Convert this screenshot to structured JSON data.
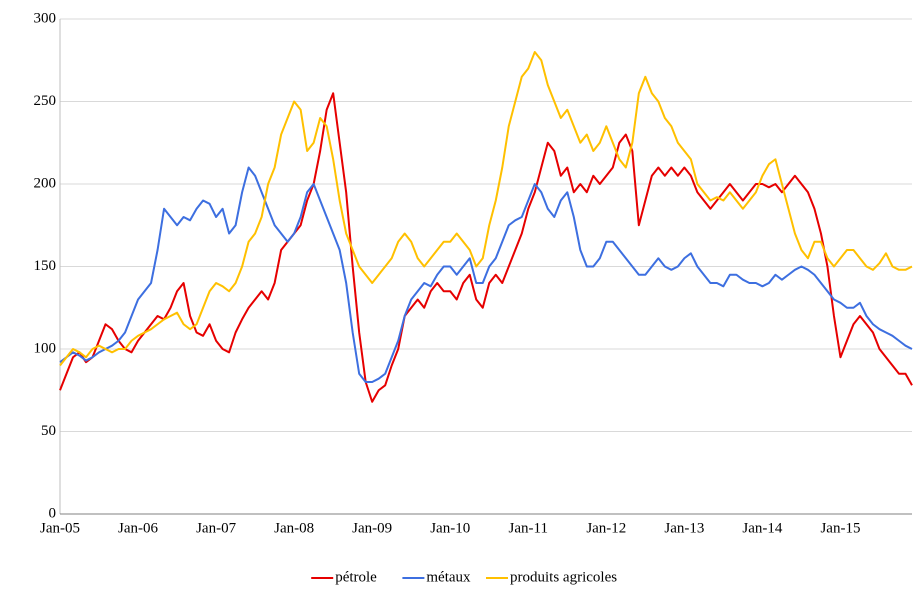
{
  "chart_data": {
    "type": "line",
    "categories": [
      "Jan-05",
      null,
      null,
      null,
      null,
      null,
      null,
      null,
      null,
      null,
      null,
      null,
      "Jan-06",
      null,
      null,
      null,
      null,
      null,
      null,
      null,
      null,
      null,
      null,
      null,
      "Jan-07",
      null,
      null,
      null,
      null,
      null,
      null,
      null,
      null,
      null,
      null,
      null,
      "Jan-08",
      null,
      null,
      null,
      null,
      null,
      null,
      null,
      null,
      null,
      null,
      null,
      "Jan-09",
      null,
      null,
      null,
      null,
      null,
      null,
      null,
      null,
      null,
      null,
      null,
      "Jan-10",
      null,
      null,
      null,
      null,
      null,
      null,
      null,
      null,
      null,
      null,
      null,
      "Jan-11",
      null,
      null,
      null,
      null,
      null,
      null,
      null,
      null,
      null,
      null,
      null,
      "Jan-12",
      null,
      null,
      null,
      null,
      null,
      null,
      null,
      null,
      null,
      null,
      null,
      "Jan-13",
      null,
      null,
      null,
      null,
      null,
      null,
      null,
      null,
      null,
      null,
      null,
      "Jan-14",
      null,
      null,
      null,
      null,
      null,
      null,
      null,
      null,
      null,
      null,
      null,
      "Jan-15",
      null,
      null,
      null,
      null,
      null,
      null,
      null,
      null,
      null,
      null,
      null
    ],
    "series": [
      {
        "name": "pétrole",
        "color": "#e60000",
        "values": [
          75,
          85,
          95,
          98,
          92,
          95,
          105,
          115,
          112,
          105,
          100,
          98,
          105,
          110,
          115,
          120,
          118,
          125,
          135,
          140,
          120,
          110,
          108,
          115,
          105,
          100,
          98,
          110,
          118,
          125,
          130,
          135,
          130,
          140,
          160,
          165,
          170,
          175,
          190,
          200,
          220,
          245,
          255,
          225,
          195,
          150,
          110,
          80,
          68,
          75,
          78,
          90,
          100,
          120,
          125,
          130,
          125,
          135,
          140,
          135,
          135,
          130,
          140,
          145,
          130,
          125,
          140,
          145,
          140,
          150,
          160,
          170,
          185,
          195,
          210,
          225,
          220,
          205,
          210,
          195,
          200,
          195,
          205,
          200,
          205,
          210,
          225,
          230,
          220,
          175,
          190,
          205,
          210,
          205,
          210,
          205,
          210,
          205,
          195,
          190,
          185,
          190,
          195,
          200,
          195,
          190,
          195,
          200,
          200,
          198,
          200,
          195,
          200,
          205,
          200,
          195,
          185,
          170,
          150,
          120,
          95,
          105,
          115,
          120,
          115,
          110,
          100,
          95,
          90,
          85,
          85,
          78
        ]
      },
      {
        "name": "métaux",
        "color": "#3d6fe0",
        "values": [
          92,
          95,
          98,
          96,
          93,
          95,
          98,
          100,
          102,
          105,
          110,
          120,
          130,
          135,
          140,
          160,
          185,
          180,
          175,
          180,
          178,
          185,
          190,
          188,
          180,
          185,
          170,
          175,
          195,
          210,
          205,
          195,
          185,
          175,
          170,
          165,
          170,
          180,
          195,
          200,
          190,
          180,
          170,
          160,
          140,
          110,
          85,
          80,
          80,
          82,
          85,
          95,
          105,
          120,
          130,
          135,
          140,
          138,
          145,
          150,
          150,
          145,
          150,
          155,
          140,
          140,
          150,
          155,
          165,
          175,
          178,
          180,
          190,
          200,
          195,
          185,
          180,
          190,
          195,
          180,
          160,
          150,
          150,
          155,
          165,
          165,
          160,
          155,
          150,
          145,
          145,
          150,
          155,
          150,
          148,
          150,
          155,
          158,
          150,
          145,
          140,
          140,
          138,
          145,
          145,
          142,
          140,
          140,
          138,
          140,
          145,
          142,
          145,
          148,
          150,
          148,
          145,
          140,
          135,
          130,
          128,
          125,
          125,
          128,
          120,
          115,
          112,
          110,
          108,
          105,
          102,
          100
        ]
      },
      {
        "name": "produits agricoles",
        "color": "#ffc000",
        "values": [
          90,
          95,
          100,
          98,
          95,
          100,
          102,
          100,
          98,
          100,
          100,
          105,
          108,
          110,
          112,
          115,
          118,
          120,
          122,
          115,
          112,
          115,
          125,
          135,
          140,
          138,
          135,
          140,
          150,
          165,
          170,
          180,
          200,
          210,
          230,
          240,
          250,
          245,
          220,
          225,
          240,
          235,
          215,
          190,
          170,
          160,
          150,
          145,
          140,
          145,
          150,
          155,
          165,
          170,
          165,
          155,
          150,
          155,
          160,
          165,
          165,
          170,
          165,
          160,
          150,
          155,
          175,
          190,
          210,
          235,
          250,
          265,
          270,
          280,
          275,
          260,
          250,
          240,
          245,
          235,
          225,
          230,
          220,
          225,
          235,
          225,
          215,
          210,
          225,
          255,
          265,
          255,
          250,
          240,
          235,
          225,
          220,
          215,
          200,
          195,
          190,
          192,
          190,
          195,
          190,
          185,
          190,
          195,
          205,
          212,
          215,
          200,
          185,
          170,
          160,
          155,
          165,
          165,
          155,
          150,
          155,
          160,
          160,
          155,
          150,
          148,
          152,
          158,
          150,
          148,
          148,
          150
        ]
      }
    ],
    "ylim": [
      0,
      300
    ],
    "yticks": [
      0,
      50,
      100,
      150,
      200,
      250,
      300
    ],
    "grid": true,
    "legend": "bottom"
  }
}
